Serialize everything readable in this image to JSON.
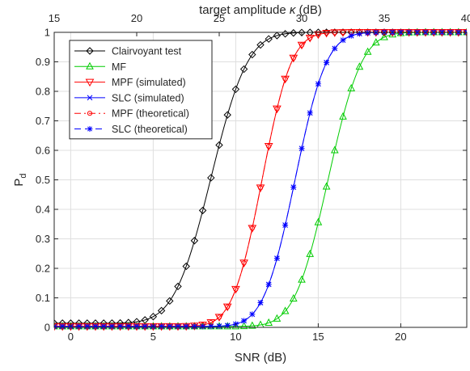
{
  "chart_data": {
    "type": "line",
    "xlabel": "SNR (dB)",
    "ylabel_main": "P",
    "ylabel_sub": "d",
    "top_xlabel_prefix": "target amplitude ",
    "top_xlabel_symbol": "κ",
    "top_xlabel_suffix": " (dB)",
    "xlim": [
      -1,
      24
    ],
    "ylim": [
      0,
      1
    ],
    "top_xlim": [
      15,
      40
    ],
    "xticks": [
      0,
      5,
      10,
      15,
      20
    ],
    "top_xticks": [
      15,
      20,
      25,
      30,
      35,
      40
    ],
    "yticks": [
      0,
      0.1,
      0.2,
      0.3,
      0.4,
      0.5,
      0.6,
      0.7,
      0.8,
      0.9,
      1
    ],
    "xtick_labels": [
      "0",
      "5",
      "10",
      "15",
      "20"
    ],
    "top_xtick_labels": [
      "15",
      "20",
      "25",
      "30",
      "35",
      "40"
    ],
    "ytick_labels": [
      "0",
      "0.1",
      "0.2",
      "0.3",
      "0.4",
      "0.5",
      "0.6",
      "0.7",
      "0.8",
      "0.9",
      "1"
    ],
    "grid": true,
    "legend_position": "top-left",
    "series": [
      {
        "name": "Clairvoyant test",
        "color": "#000000",
        "marker": "diamond",
        "line": "solid",
        "mu": 8.5,
        "s": 1.75,
        "floor": 0.014
      },
      {
        "name": "MF",
        "color": "#00cc00",
        "marker": "triangle-up",
        "line": "solid",
        "mu": 15.6,
        "s": 1.6,
        "floor": 0.003
      },
      {
        "name": "MPF (simulated)",
        "color": "#ff0000",
        "marker": "triangle-down",
        "line": "solid",
        "mu": 11.6,
        "s": 1.4,
        "floor": 0.003
      },
      {
        "name": "SLC (simulated)",
        "color": "#0000ff",
        "marker": "x",
        "line": "solid",
        "mu": 13.6,
        "s": 1.5,
        "floor": 0.003
      },
      {
        "name": "MPF (theoretical)",
        "color": "#ff0000",
        "marker": "circle",
        "line": "dashdot",
        "mu": 11.6,
        "s": 1.4,
        "floor": 0.003
      },
      {
        "name": "SLC (theoretical)",
        "color": "#0000ff",
        "marker": "star",
        "line": "dashed",
        "mu": 13.6,
        "s": 1.5,
        "floor": 0.003
      }
    ]
  }
}
